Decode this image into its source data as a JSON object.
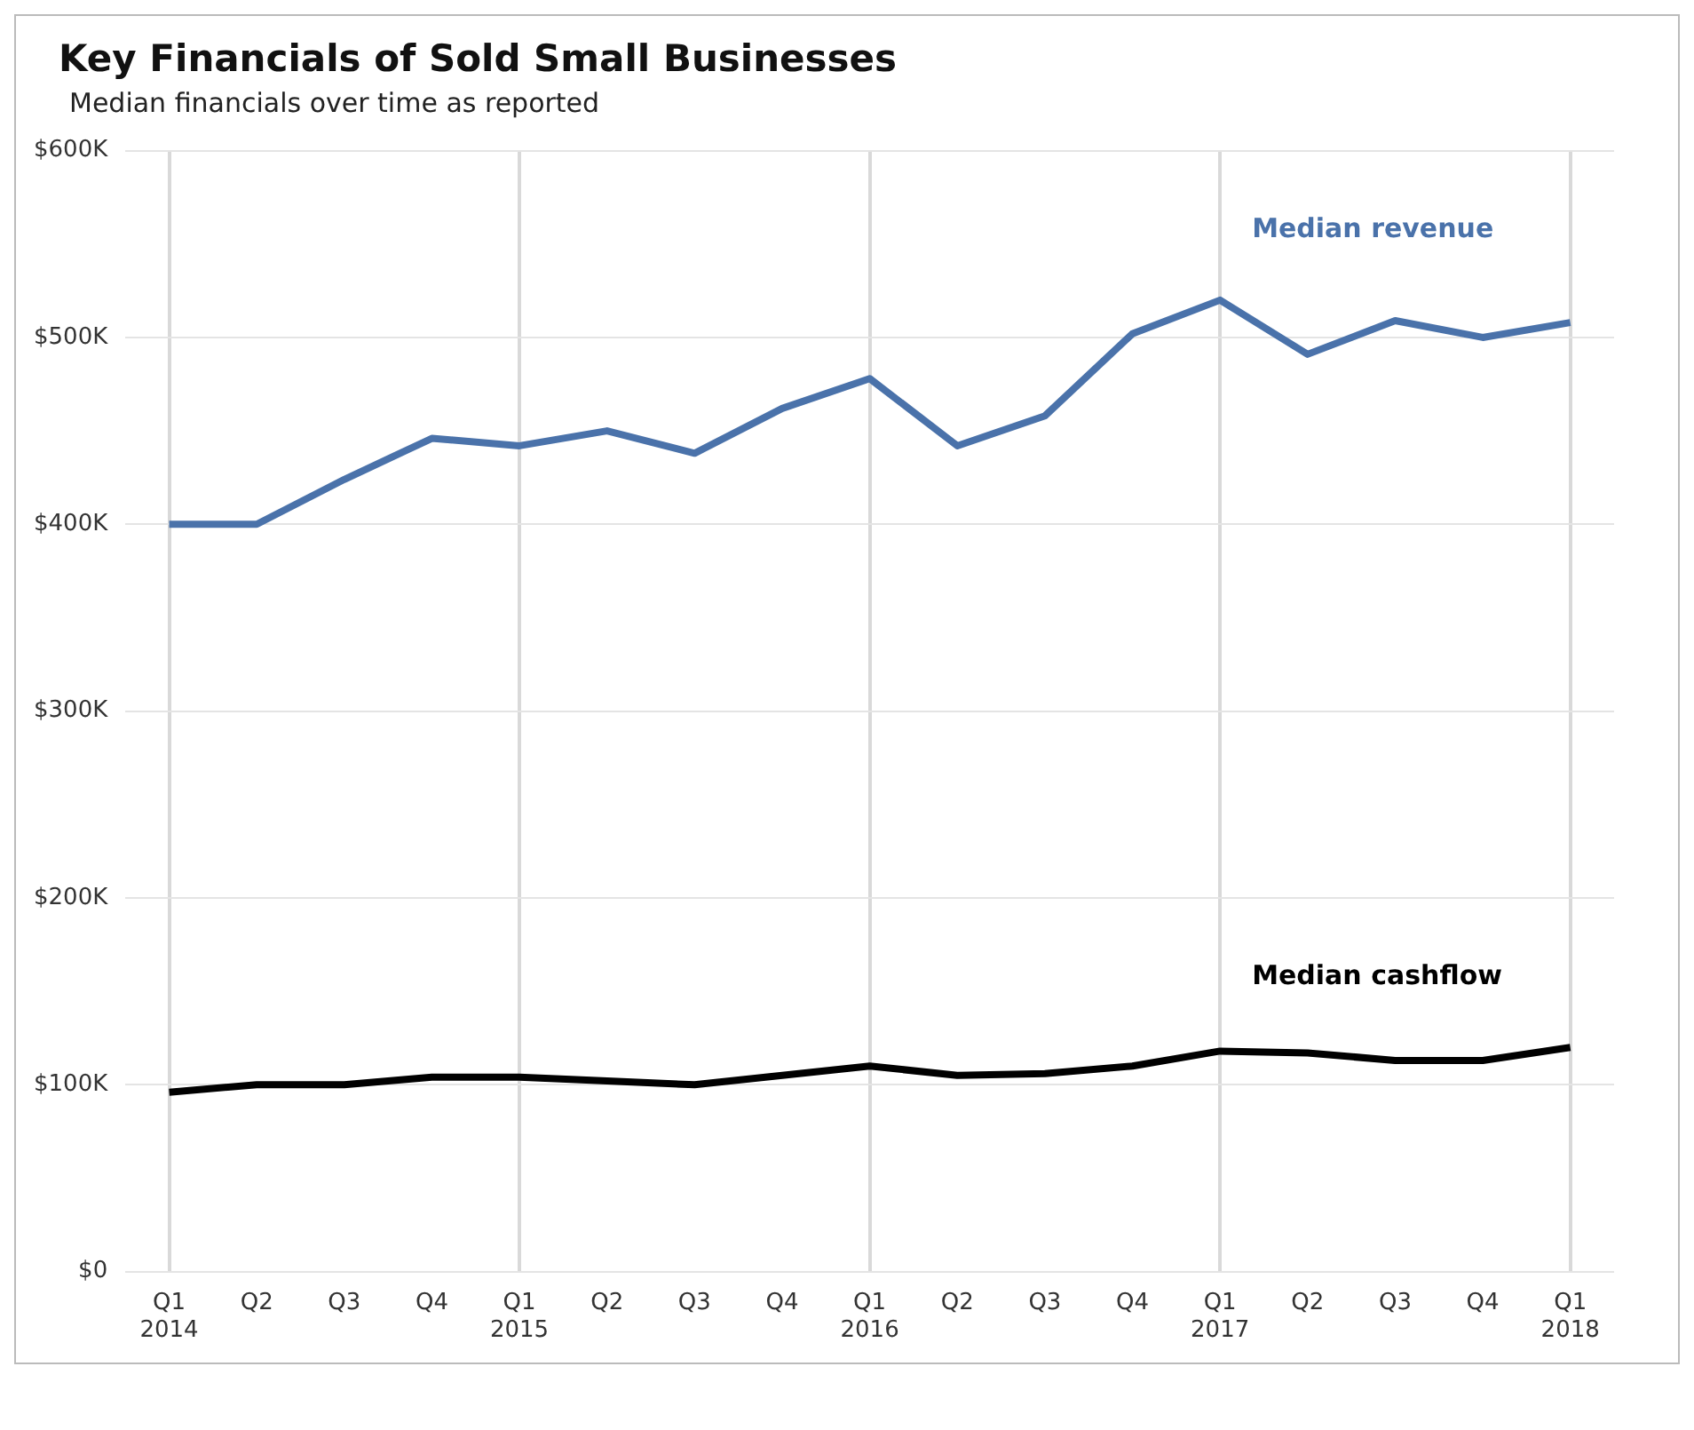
{
  "chart_data": {
    "type": "line",
    "title": "Key Financials of Sold Small Businesses",
    "subtitle": "Median financials over time as reported",
    "categories": [
      "Q1 2014",
      "Q2",
      "Q3",
      "Q4",
      "Q1 2015",
      "Q2",
      "Q3",
      "Q4",
      "Q1 2016",
      "Q2",
      "Q3",
      "Q4",
      "Q1 2017",
      "Q2",
      "Q3",
      "Q4",
      "Q1 2018"
    ],
    "series": [
      {
        "name": "Median revenue",
        "color": "#4a72aa",
        "values": [
          400,
          400,
          424,
          446,
          442,
          450,
          438,
          462,
          478,
          442,
          458,
          502,
          520,
          491,
          509,
          500,
          508
        ]
      },
      {
        "name": "Median cashflow",
        "color": "#000000",
        "values": [
          96,
          100,
          100,
          104,
          104,
          102,
          100,
          105,
          110,
          105,
          106,
          110,
          118,
          117,
          113,
          113,
          120
        ]
      }
    ],
    "ylim": [
      0,
      600
    ],
    "yticks": [
      {
        "value": 0,
        "label": "$0"
      },
      {
        "value": 100,
        "label": "$100K"
      },
      {
        "value": 200,
        "label": "$200K"
      },
      {
        "value": 300,
        "label": "$300K"
      },
      {
        "value": 400,
        "label": "$400K"
      },
      {
        "value": 500,
        "label": "$500K"
      },
      {
        "value": 600,
        "label": "$600K"
      }
    ],
    "grid": true,
    "legend": false,
    "marker": "none",
    "line_style": "solid"
  }
}
